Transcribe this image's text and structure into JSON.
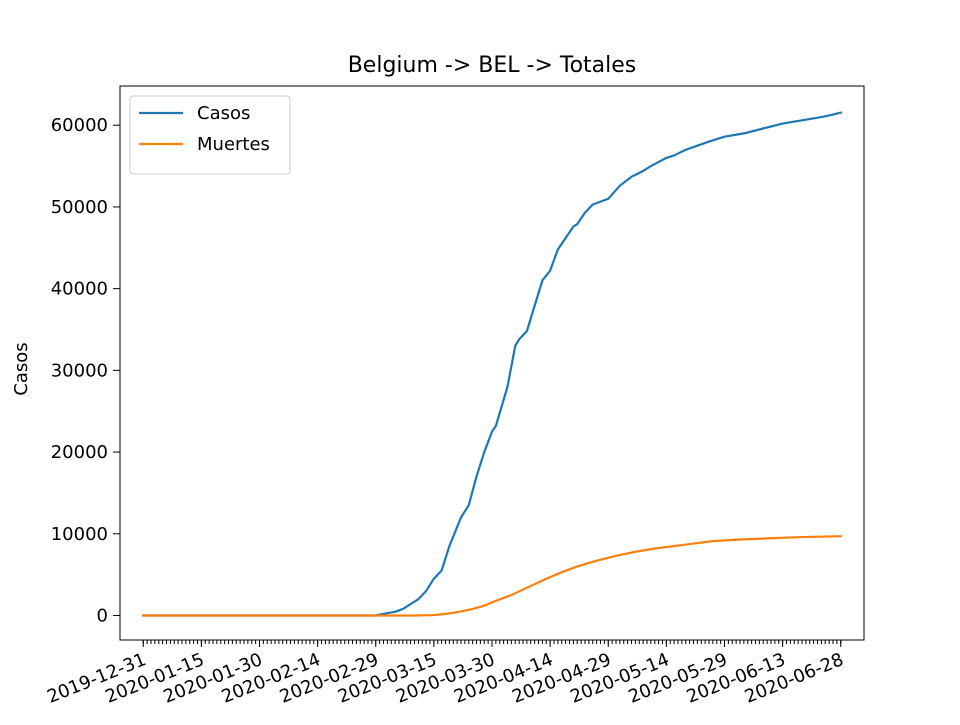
{
  "chart_data": {
    "type": "line",
    "title": "Belgium -> BEL -> Totales",
    "xlabel": "",
    "ylabel": "Casos",
    "x_start": "2019-12-31",
    "x_end": "2020-06-28",
    "xlim": [
      "2019-12-25",
      "2020-07-04"
    ],
    "ylim": [
      -3000,
      64800
    ],
    "x_tick_labels": [
      "2019-12-31",
      "2020-01-15",
      "2020-01-30",
      "2020-02-14",
      "2020-02-29",
      "2020-03-15",
      "2020-03-30",
      "2020-04-14",
      "2020-04-29",
      "2020-05-14",
      "2020-05-29",
      "2020-06-13",
      "2020-06-28"
    ],
    "x_tick_rotation": 22,
    "minor_ticks": "daily",
    "y_ticks": [
      0,
      10000,
      20000,
      30000,
      40000,
      50000,
      60000
    ],
    "grid": false,
    "legend_position": "top-left",
    "series": [
      {
        "name": "Casos",
        "color": "#1f77b4",
        "points": [
          [
            "2019-12-31",
            0
          ],
          [
            "2020-02-29",
            0
          ],
          [
            "2020-03-02",
            200
          ],
          [
            "2020-03-05",
            450
          ],
          [
            "2020-03-07",
            800
          ],
          [
            "2020-03-09",
            1400
          ],
          [
            "2020-03-11",
            2000
          ],
          [
            "2020-03-13",
            3000
          ],
          [
            "2020-03-15",
            4500
          ],
          [
            "2020-03-17",
            5500
          ],
          [
            "2020-03-19",
            8500
          ],
          [
            "2020-03-22",
            12000
          ],
          [
            "2020-03-24",
            13500
          ],
          [
            "2020-03-26",
            17000
          ],
          [
            "2020-03-28",
            20000
          ],
          [
            "2020-03-30",
            22500
          ],
          [
            "2020-03-31",
            23200
          ],
          [
            "2020-04-03",
            28000
          ],
          [
            "2020-04-05",
            33000
          ],
          [
            "2020-04-06",
            33800
          ],
          [
            "2020-04-08",
            34800
          ],
          [
            "2020-04-12",
            41000
          ],
          [
            "2020-04-14",
            42200
          ],
          [
            "2020-04-16",
            44800
          ],
          [
            "2020-04-20",
            47600
          ],
          [
            "2020-04-21",
            47900
          ],
          [
            "2020-04-23",
            49300
          ],
          [
            "2020-04-25",
            50300
          ],
          [
            "2020-04-29",
            51000
          ],
          [
            "2020-05-02",
            52600
          ],
          [
            "2020-05-05",
            53700
          ],
          [
            "2020-05-08",
            54400
          ],
          [
            "2020-05-10",
            55000
          ],
          [
            "2020-05-14",
            56000
          ],
          [
            "2020-05-16",
            56300
          ],
          [
            "2020-05-19",
            57000
          ],
          [
            "2020-05-22",
            57500
          ],
          [
            "2020-05-25",
            58000
          ],
          [
            "2020-05-29",
            58600
          ],
          [
            "2020-06-03",
            59000
          ],
          [
            "2020-06-08",
            59600
          ],
          [
            "2020-06-13",
            60200
          ],
          [
            "2020-06-18",
            60600
          ],
          [
            "2020-06-23",
            61000
          ],
          [
            "2020-06-26",
            61300
          ],
          [
            "2020-06-28",
            61550
          ]
        ]
      },
      {
        "name": "Muertes",
        "color": "#ff7f0e",
        "points": [
          [
            "2019-12-31",
            0
          ],
          [
            "2020-03-10",
            0
          ],
          [
            "2020-03-15",
            50
          ],
          [
            "2020-03-18",
            200
          ],
          [
            "2020-03-21",
            400
          ],
          [
            "2020-03-25",
            800
          ],
          [
            "2020-03-28",
            1200
          ],
          [
            "2020-03-31",
            1800
          ],
          [
            "2020-04-04",
            2500
          ],
          [
            "2020-04-08",
            3400
          ],
          [
            "2020-04-13",
            4500
          ],
          [
            "2020-04-17",
            5300
          ],
          [
            "2020-04-21",
            6000
          ],
          [
            "2020-04-26",
            6700
          ],
          [
            "2020-05-01",
            7300
          ],
          [
            "2020-05-06",
            7800
          ],
          [
            "2020-05-11",
            8200
          ],
          [
            "2020-05-16",
            8500
          ],
          [
            "2020-05-21",
            8800
          ],
          [
            "2020-05-26",
            9100
          ],
          [
            "2020-06-02",
            9300
          ],
          [
            "2020-06-10",
            9450
          ],
          [
            "2020-06-18",
            9600
          ],
          [
            "2020-06-28",
            9700
          ]
        ]
      }
    ]
  }
}
